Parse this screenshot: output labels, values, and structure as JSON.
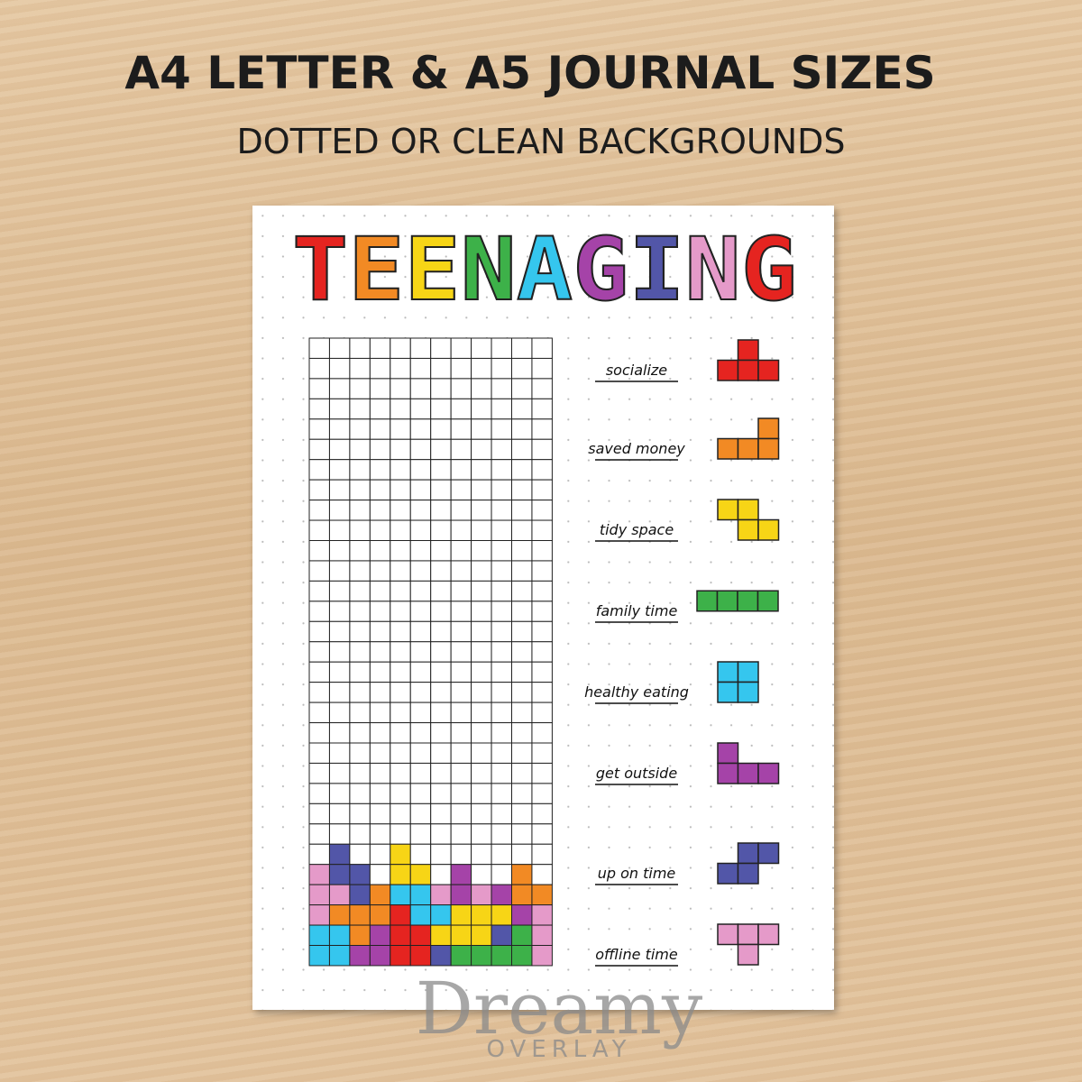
{
  "header": {
    "title": "A4 LETTER & A5 JOURNAL SIZES",
    "subtitle": "DOTTED OR CLEAN BACKGROUNDS"
  },
  "page": {
    "title": "TEENAGING",
    "legend": [
      "socialize",
      "saved money",
      "tidy space",
      "family time",
      "healthy eating",
      "get outside",
      "up on time",
      "offline time"
    ]
  },
  "watermark": {
    "name": "Dreamy",
    "sub": "OVERLAY"
  }
}
